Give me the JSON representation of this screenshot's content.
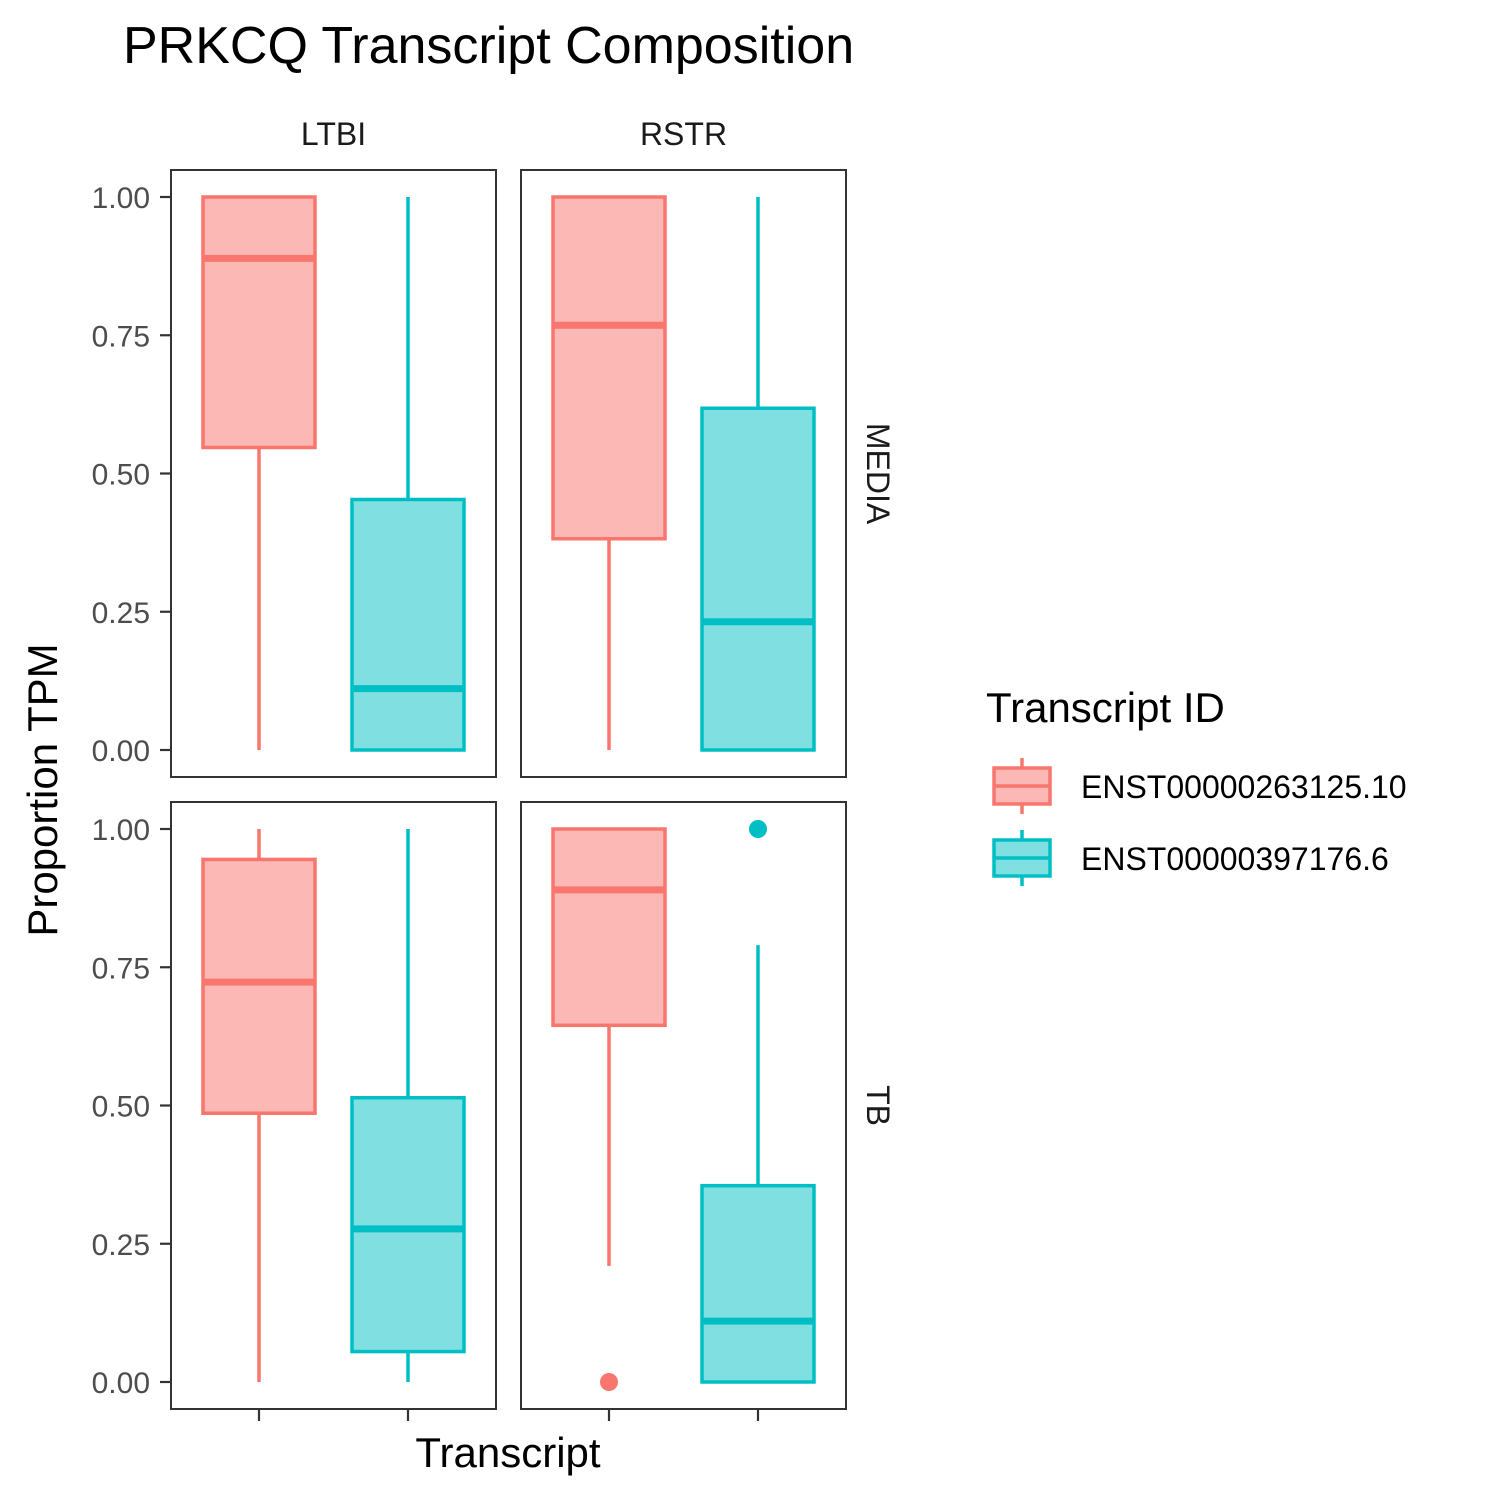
{
  "chart_data": {
    "type": "box",
    "title": "PRKCQ Transcript Composition",
    "xlabel": "Transcript",
    "ylabel": "Proportion TPM",
    "ylim": [
      0,
      1
    ],
    "yticks": [
      0,
      0.25,
      0.5,
      0.75,
      1
    ],
    "ytick_labels": [
      "0.00",
      "0.25",
      "0.50",
      "0.75",
      "1.00"
    ],
    "grid": false,
    "facet_cols": [
      "LTBI",
      "RSTR"
    ],
    "facet_rows": [
      "MEDIA",
      "TB"
    ],
    "legend": {
      "title": "Transcript ID",
      "placement": "right",
      "entries": [
        "ENST00000263125.10",
        "ENST00000397176.6"
      ]
    },
    "series_colors": {
      "ENST00000263125.10": {
        "line": "#F8766D",
        "fill": "#FBB8B4"
      },
      "ENST00000397176.6": {
        "line": "#00BFC4",
        "fill": "#80DFE1"
      }
    },
    "panels": [
      {
        "col": "LTBI",
        "row": "MEDIA",
        "boxes": [
          {
            "series": "ENST00000263125.10",
            "whisker_low": 0.0,
            "q1": 0.547,
            "median": 0.889,
            "q3": 1.0,
            "whisker_high": 1.0,
            "outliers": []
          },
          {
            "series": "ENST00000397176.6",
            "whisker_low": 0.0,
            "q1": 0.0,
            "median": 0.111,
            "q3": 0.453,
            "whisker_high": 1.0,
            "outliers": []
          }
        ]
      },
      {
        "col": "RSTR",
        "row": "MEDIA",
        "boxes": [
          {
            "series": "ENST00000263125.10",
            "whisker_low": 0.0,
            "q1": 0.382,
            "median": 0.768,
            "q3": 1.0,
            "whisker_high": 1.0,
            "outliers": []
          },
          {
            "series": "ENST00000397176.6",
            "whisker_low": 0.0,
            "q1": 0.0,
            "median": 0.232,
            "q3": 0.618,
            "whisker_high": 1.0,
            "outliers": []
          }
        ]
      },
      {
        "col": "LTBI",
        "row": "TB",
        "boxes": [
          {
            "series": "ENST00000263125.10",
            "whisker_low": 0.0,
            "q1": 0.486,
            "median": 0.723,
            "q3": 0.945,
            "whisker_high": 1.0,
            "outliers": []
          },
          {
            "series": "ENST00000397176.6",
            "whisker_low": 0.0,
            "q1": 0.055,
            "median": 0.277,
            "q3": 0.514,
            "whisker_high": 1.0,
            "outliers": []
          }
        ]
      },
      {
        "col": "RSTR",
        "row": "TB",
        "boxes": [
          {
            "series": "ENST00000263125.10",
            "whisker_low": 0.21,
            "q1": 0.645,
            "median": 0.89,
            "q3": 1.0,
            "whisker_high": 1.0,
            "outliers": [
              0.0
            ]
          },
          {
            "series": "ENST00000397176.6",
            "whisker_low": 0.0,
            "q1": 0.0,
            "median": 0.11,
            "q3": 0.355,
            "whisker_high": 0.79,
            "outliers": [
              1.0
            ]
          }
        ]
      }
    ]
  }
}
